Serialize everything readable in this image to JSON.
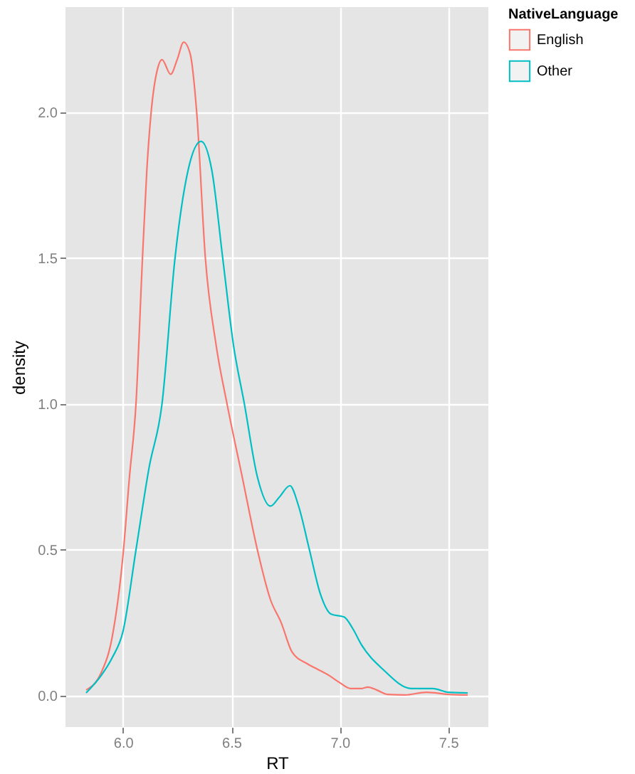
{
  "chart_data": {
    "type": "line",
    "xlabel": "RT",
    "ylabel": "density",
    "legend_title": "NativeLanguage",
    "legend": "right",
    "grid": true,
    "xlim": [
      5.735,
      7.685
    ],
    "ylim": [
      -0.107,
      2.36
    ],
    "xticks": [
      {
        "value": 6,
        "label": "6.0"
      },
      {
        "value": 6.5,
        "label": "6.5"
      },
      {
        "value": 7,
        "label": "7.0"
      },
      {
        "value": 7.5,
        "label": "7.5"
      }
    ],
    "yticks": [
      {
        "value": 0,
        "label": "0.0"
      },
      {
        "value": 0.5,
        "label": "0.5"
      },
      {
        "value": 1,
        "label": "1.0"
      },
      {
        "value": 1.5,
        "label": "1.5"
      },
      {
        "value": 2,
        "label": "2.0"
      }
    ],
    "series": [
      {
        "name": "English",
        "color": "#f8766d",
        "x": [
          5.83,
          5.9,
          5.95,
          6.0,
          6.03,
          6.06,
          6.09,
          6.11,
          6.13,
          6.16,
          6.18,
          6.22,
          6.25,
          6.28,
          6.31,
          6.34,
          6.38,
          6.43,
          6.48,
          6.55,
          6.62,
          6.68,
          6.73,
          6.78,
          6.85,
          6.9,
          6.95,
          7.0,
          7.05,
          7.1,
          7.13,
          7.17,
          7.22,
          7.3,
          7.4,
          7.5,
          7.59
        ],
        "values": [
          0.02,
          0.08,
          0.2,
          0.48,
          0.75,
          1.0,
          1.5,
          1.8,
          2.0,
          2.15,
          2.18,
          2.13,
          2.18,
          2.24,
          2.2,
          2.0,
          1.5,
          1.2,
          1.0,
          0.75,
          0.5,
          0.33,
          0.25,
          0.15,
          0.11,
          0.09,
          0.07,
          0.045,
          0.025,
          0.025,
          0.03,
          0.02,
          0.005,
          0.003,
          0.012,
          0.005,
          0.003
        ]
      },
      {
        "name": "Other",
        "color": "#00bfc4",
        "x": [
          5.83,
          5.9,
          5.95,
          6.0,
          6.06,
          6.12,
          6.18,
          6.24,
          6.3,
          6.36,
          6.41,
          6.46,
          6.51,
          6.56,
          6.62,
          6.68,
          6.72,
          6.77,
          6.81,
          6.86,
          6.91,
          6.96,
          7.02,
          7.06,
          7.1,
          7.2,
          7.33,
          7.43,
          7.5,
          7.59
        ],
        "values": [
          0.01,
          0.07,
          0.13,
          0.22,
          0.5,
          0.78,
          1.0,
          1.5,
          1.8,
          1.9,
          1.8,
          1.5,
          1.2,
          1.0,
          0.75,
          0.65,
          0.68,
          0.72,
          0.65,
          0.5,
          0.35,
          0.28,
          0.27,
          0.23,
          0.175,
          0.09,
          0.025,
          0.025,
          0.012,
          0.01
        ]
      }
    ]
  }
}
